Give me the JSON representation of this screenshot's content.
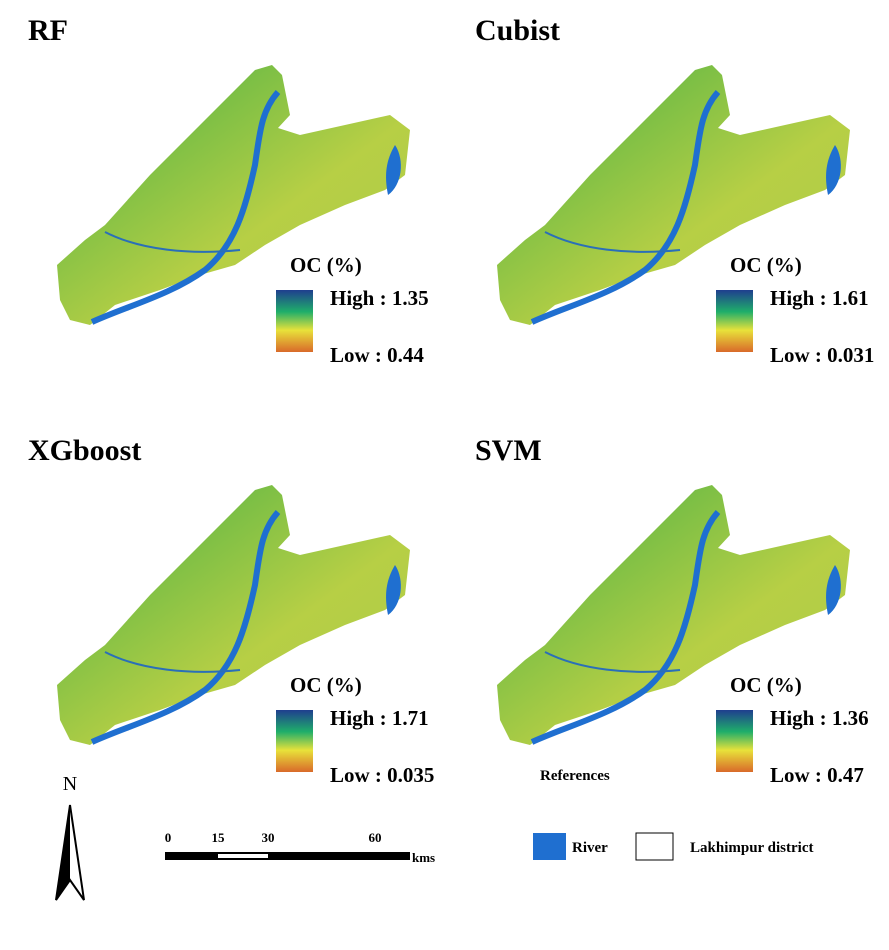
{
  "panels": [
    {
      "title": "RF",
      "legend_title": "OC (%)",
      "high": "High : 1.35",
      "low": "Low : 0.44"
    },
    {
      "title": "Cubist",
      "legend_title": "OC (%)",
      "high": "High : 1.61",
      "low": "Low : 0.031"
    },
    {
      "title": "XGboost",
      "legend_title": "OC (%)",
      "high": "High : 1.71",
      "low": "Low : 0.035"
    },
    {
      "title": "SVM",
      "legend_title": "OC (%)",
      "high": "High : 1.36",
      "low": "Low : 0.47"
    }
  ],
  "north": "N",
  "scale": {
    "ticks": [
      "0",
      "15",
      "30",
      "60"
    ],
    "unit": "kms"
  },
  "references": {
    "title": "References",
    "items": [
      "River",
      "Lakhimpur district"
    ]
  }
}
